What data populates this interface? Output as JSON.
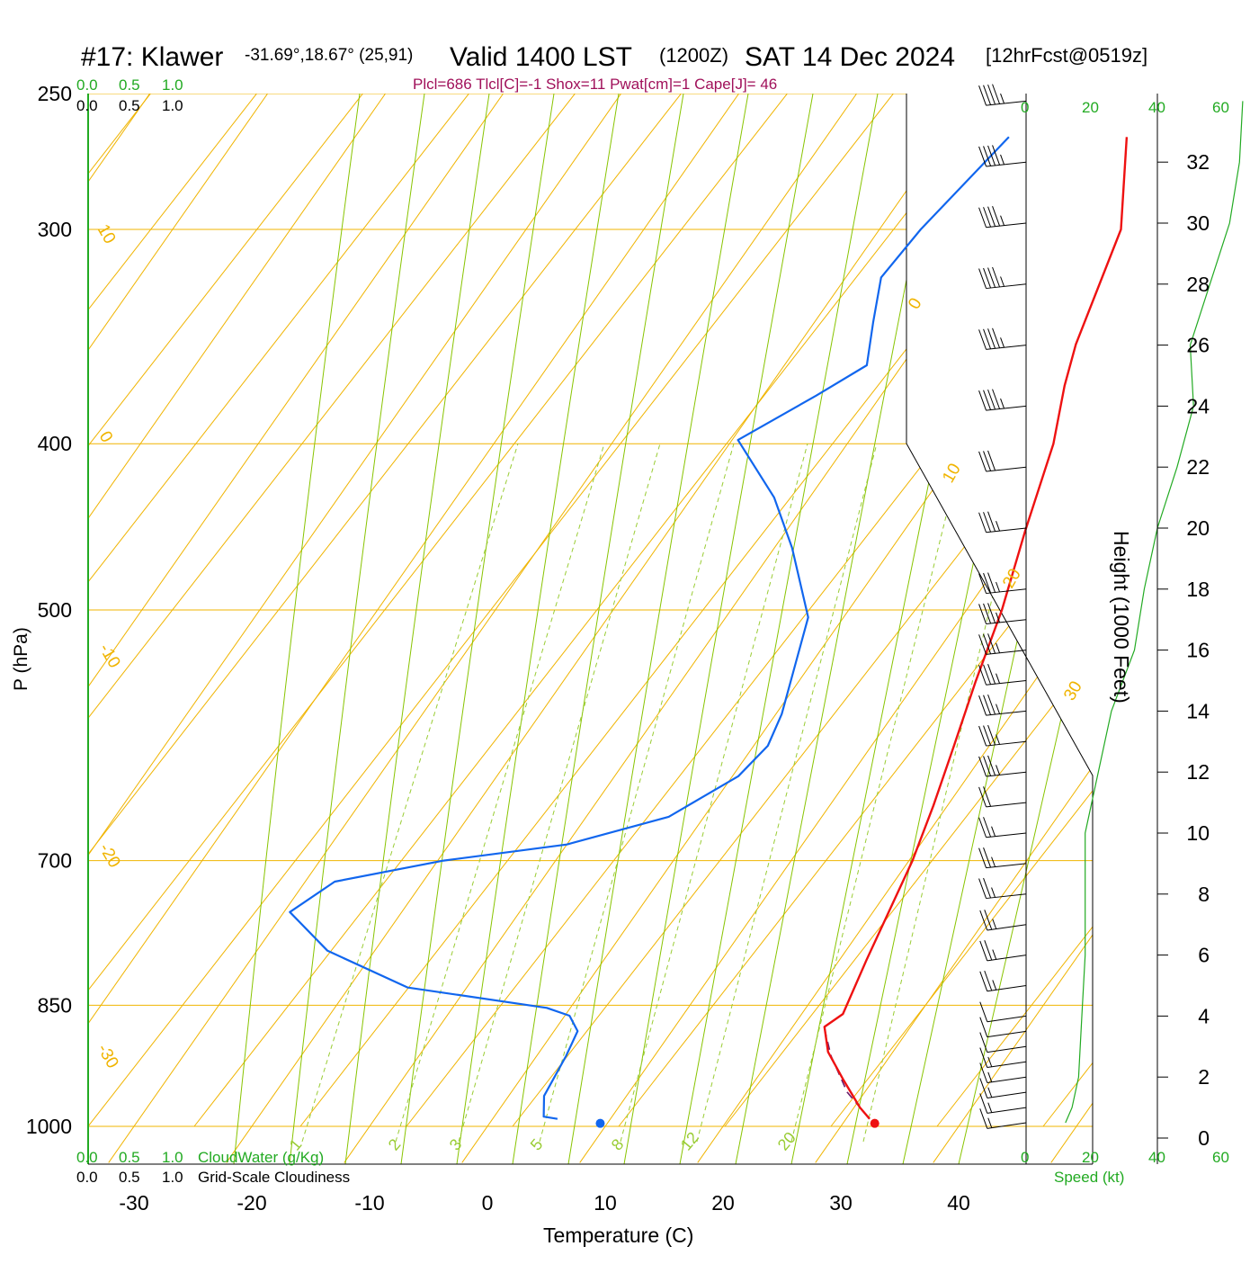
{
  "header": {
    "station": "#17: Klawer",
    "coords": "-31.69°,18.67° (25,91)",
    "valid": "Valid 1400 LST",
    "utc": "(1200Z)",
    "date": "SAT 14 Dec 2024",
    "forecast": "[12hrFcst@0519z]",
    "indices": "Plcl=686 Tlcl[C]=-1 Shox=11 Pwat[cm]=1 Cape[J]= 46"
  },
  "colors": {
    "temperature": "#ee1111",
    "dewpoint": "#1166ee",
    "isotherm": "#f0b400",
    "dry_adiabat": "#f0b400",
    "moist_adiabat": "#88c400",
    "mixing_ratio": "#99cc33",
    "parcel": "#6a1a6a",
    "labels_green": "#22aa22",
    "indices": "#a0105a"
  },
  "top_scales": {
    "row1": [
      "0.0",
      "0.5",
      "1.0"
    ],
    "row2": [
      "0.0",
      "0.5",
      "1.0"
    ]
  },
  "bottom_scales": {
    "row1": [
      "0.0",
      "0.5",
      "1.0"
    ],
    "row1_label": "CloudWater (g/Kg)",
    "row2": [
      "0.0",
      "0.5",
      "1.0"
    ],
    "row2_label": "Grid-Scale Cloudiness"
  },
  "speed_axis": {
    "ticks": [
      "0",
      "20",
      "40",
      "60"
    ],
    "label": "Speed (kt)"
  },
  "chart_data": {
    "type": "line",
    "diagram": "skew-T log-p",
    "xlabel": "Temperature (C)",
    "ylabel": "P (hPa)",
    "y2label": "Height (1000 Feet)",
    "x_ticks": [
      -30,
      -20,
      -10,
      0,
      10,
      20,
      30,
      40
    ],
    "p_ticks": [
      250,
      300,
      400,
      500,
      700,
      850,
      1000
    ],
    "h_ticks": [
      0,
      2,
      4,
      6,
      8,
      10,
      12,
      14,
      16,
      18,
      20,
      22,
      24,
      26,
      28,
      30,
      32
    ],
    "dry_adiabat_labels": [
      "10",
      "0",
      "-10",
      "-20",
      "-30",
      "0",
      "10",
      "20",
      "30"
    ],
    "mixing_ratio_labels": [
      "1",
      "2",
      "3",
      "5",
      "8",
      "12",
      "20"
    ],
    "series": [
      {
        "name": "temperature",
        "points": [
          [
            32.0,
            990
          ],
          [
            30.5,
            975
          ],
          [
            27.5,
            940
          ],
          [
            24.5,
            905
          ],
          [
            22.7,
            875
          ],
          [
            23.5,
            860
          ],
          [
            22.3,
            800
          ],
          [
            20.3,
            700
          ],
          [
            18.8,
            650
          ],
          [
            17.0,
            600
          ],
          [
            15.0,
            550
          ],
          [
            13.0,
            500
          ],
          [
            10.3,
            450
          ],
          [
            7.5,
            400
          ],
          [
            5.0,
            370
          ],
          [
            3.5,
            350
          ],
          [
            0.5,
            300
          ],
          [
            -4.5,
            265
          ]
        ]
      },
      {
        "name": "dewpoint",
        "points": [
          [
            5.5,
            990
          ],
          [
            4.2,
            987
          ],
          [
            3.0,
            960
          ],
          [
            2.5,
            910
          ],
          [
            2.0,
            880
          ],
          [
            0.4,
            862
          ],
          [
            -2.0,
            853
          ],
          [
            -15.0,
            830
          ],
          [
            -24.0,
            790
          ],
          [
            -29.5,
            750
          ],
          [
            -27.5,
            720
          ],
          [
            -19.5,
            700
          ],
          [
            -10.0,
            685
          ],
          [
            -3.0,
            660
          ],
          [
            0.5,
            625
          ],
          [
            1.2,
            600
          ],
          [
            0.5,
            575
          ],
          [
            -3.0,
            505
          ],
          [
            -8.5,
            460
          ],
          [
            -13.0,
            430
          ],
          [
            -19.5,
            398
          ],
          [
            -15.5,
            375
          ],
          [
            -13.0,
            360
          ],
          [
            -15.0,
            340
          ],
          [
            -17.0,
            320
          ],
          [
            -16.5,
            300
          ],
          [
            -14.5,
            265
          ]
        ]
      },
      {
        "name": "parcel",
        "points": [
          [
            32.0,
            990
          ],
          [
            28.5,
            955
          ],
          [
            25.0,
            910
          ],
          [
            23.0,
            880
          ]
        ]
      }
    ],
    "surface_temperature": 32.7,
    "surface_dewpoint": 9.4,
    "surface_pressure": 996,
    "wind_barbs_kt": [
      {
        "h": 0.5,
        "s": 5
      },
      {
        "h": 1.0,
        "s": 5
      },
      {
        "h": 1.5,
        "s": 5
      },
      {
        "h": 2.0,
        "s": 5
      },
      {
        "h": 2.5,
        "s": 5
      },
      {
        "h": 3.0,
        "s": 10
      },
      {
        "h": 3.5,
        "s": 10
      },
      {
        "h": 4.0,
        "s": 10
      },
      {
        "h": 5.0,
        "s": 15
      },
      {
        "h": 6.0,
        "s": 15
      },
      {
        "h": 7.0,
        "s": 15
      },
      {
        "h": 8.0,
        "s": 15
      },
      {
        "h": 9.0,
        "s": 15
      },
      {
        "h": 10.0,
        "s": 15
      },
      {
        "h": 11.0,
        "s": 20
      },
      {
        "h": 12.0,
        "s": 25
      },
      {
        "h": 13.0,
        "s": 25
      },
      {
        "h": 14.0,
        "s": 25
      },
      {
        "h": 15.0,
        "s": 25
      },
      {
        "h": 16.0,
        "s": 25
      },
      {
        "h": 17.0,
        "s": 25
      },
      {
        "h": 18.0,
        "s": 25
      },
      {
        "h": 20.0,
        "s": 25
      },
      {
        "h": 22.0,
        "s": 30
      },
      {
        "h": 24.0,
        "s": 35
      },
      {
        "h": 26.0,
        "s": 35
      },
      {
        "h": 28.0,
        "s": 35
      },
      {
        "h": 30.0,
        "s": 35
      },
      {
        "h": 32.0,
        "s": 35
      },
      {
        "h": 34.0,
        "s": 35
      }
    ],
    "speed_profile_kt": [
      [
        0.5,
        12
      ],
      [
        1,
        14
      ],
      [
        2,
        16
      ],
      [
        4,
        17
      ],
      [
        6,
        18
      ],
      [
        8,
        18
      ],
      [
        10,
        18
      ],
      [
        12,
        22
      ],
      [
        14,
        26
      ],
      [
        16,
        33
      ],
      [
        18,
        36
      ],
      [
        20,
        40
      ],
      [
        22,
        46
      ],
      [
        24,
        51
      ],
      [
        26,
        50
      ],
      [
        28,
        56
      ],
      [
        30,
        62
      ],
      [
        32,
        65
      ],
      [
        34,
        66
      ]
    ]
  }
}
